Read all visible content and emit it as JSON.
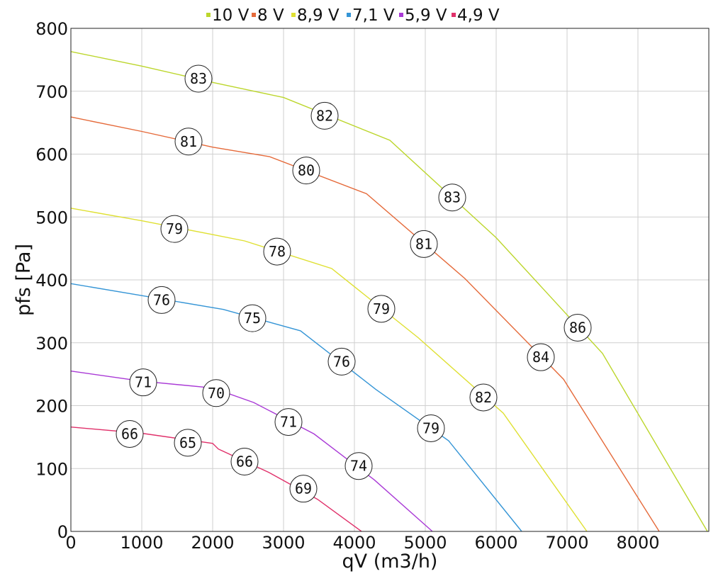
{
  "chart_data": {
    "type": "line",
    "xlabel": "qV (m3/h)",
    "ylabel": "pfs [Pa]",
    "xlim": [
      0,
      9000
    ],
    "ylim": [
      0,
      800
    ],
    "x_ticks": [
      0,
      1000,
      2000,
      3000,
      4000,
      5000,
      6000,
      7000,
      8000
    ],
    "y_ticks": [
      0,
      100,
      200,
      300,
      400,
      500,
      600,
      700,
      800
    ],
    "grid": true,
    "legend_position": "top-center",
    "series": [
      {
        "name": "10 V",
        "color": "#bcd62c",
        "points": [
          [
            0,
            763
          ],
          [
            1000,
            740
          ],
          [
            2000,
            714
          ],
          [
            3000,
            690
          ],
          [
            4500,
            622
          ],
          [
            6000,
            467
          ],
          [
            7500,
            283
          ],
          [
            8980,
            0
          ]
        ],
        "annotations": [
          {
            "x": 1800,
            "y": 720,
            "label": "83"
          },
          {
            "x": 3580,
            "y": 661,
            "label": "82"
          },
          {
            "x": 5380,
            "y": 531,
            "label": "83"
          },
          {
            "x": 7150,
            "y": 324,
            "label": "86"
          }
        ]
      },
      {
        "name": "8 V",
        "color": "#e56a3a",
        "points": [
          [
            0,
            659
          ],
          [
            1000,
            636
          ],
          [
            2000,
            611
          ],
          [
            2800,
            596
          ],
          [
            4170,
            537
          ],
          [
            5560,
            402
          ],
          [
            6950,
            242
          ],
          [
            8300,
            0
          ]
        ],
        "annotations": [
          {
            "x": 1660,
            "y": 620,
            "label": "81"
          },
          {
            "x": 3320,
            "y": 574,
            "label": "80"
          },
          {
            "x": 4980,
            "y": 457,
            "label": "81"
          },
          {
            "x": 6630,
            "y": 277,
            "label": "84"
          }
        ]
      },
      {
        "name": "8,9 V",
        "color": "#dfe032",
        "points": [
          [
            0,
            514
          ],
          [
            1000,
            494
          ],
          [
            2000,
            472
          ],
          [
            2450,
            462
          ],
          [
            3680,
            418
          ],
          [
            4900,
            308
          ],
          [
            6100,
            188
          ],
          [
            7280,
            0
          ]
        ],
        "annotations": [
          {
            "x": 1460,
            "y": 481,
            "label": "79"
          },
          {
            "x": 2910,
            "y": 445,
            "label": "78"
          },
          {
            "x": 4380,
            "y": 354,
            "label": "79"
          },
          {
            "x": 5820,
            "y": 213,
            "label": "82"
          }
        ]
      },
      {
        "name": "7,1 V",
        "color": "#3595d6",
        "points": [
          [
            0,
            394
          ],
          [
            1000,
            375
          ],
          [
            2150,
            353
          ],
          [
            3240,
            319
          ],
          [
            4300,
            226
          ],
          [
            5330,
            144
          ],
          [
            6360,
            0
          ]
        ],
        "annotations": [
          {
            "x": 1280,
            "y": 368,
            "label": "76"
          },
          {
            "x": 2560,
            "y": 339,
            "label": "75"
          },
          {
            "x": 3820,
            "y": 270,
            "label": "76"
          },
          {
            "x": 5080,
            "y": 164,
            "label": "79"
          }
        ]
      },
      {
        "name": "5,9 V",
        "color": "#a939d6",
        "points": [
          [
            0,
            255
          ],
          [
            1000,
            239
          ],
          [
            2000,
            228
          ],
          [
            2580,
            205
          ],
          [
            3430,
            155
          ],
          [
            4280,
            82
          ],
          [
            5100,
            0
          ]
        ],
        "annotations": [
          {
            "x": 1020,
            "y": 237,
            "label": "71"
          },
          {
            "x": 2050,
            "y": 220,
            "label": "70"
          },
          {
            "x": 3070,
            "y": 174,
            "label": "71"
          },
          {
            "x": 4060,
            "y": 104,
            "label": "74"
          }
        ]
      },
      {
        "name": "4,9 V",
        "color": "#e0306a",
        "points": [
          [
            0,
            166
          ],
          [
            1000,
            156
          ],
          [
            2000,
            140
          ],
          [
            2080,
            131
          ],
          [
            2790,
            94
          ],
          [
            3480,
            51
          ],
          [
            4100,
            0
          ]
        ],
        "annotations": [
          {
            "x": 830,
            "y": 155,
            "label": "66"
          },
          {
            "x": 1650,
            "y": 141,
            "label": "65"
          },
          {
            "x": 2450,
            "y": 111,
            "label": "66"
          },
          {
            "x": 3280,
            "y": 68,
            "label": "69"
          }
        ]
      }
    ]
  }
}
